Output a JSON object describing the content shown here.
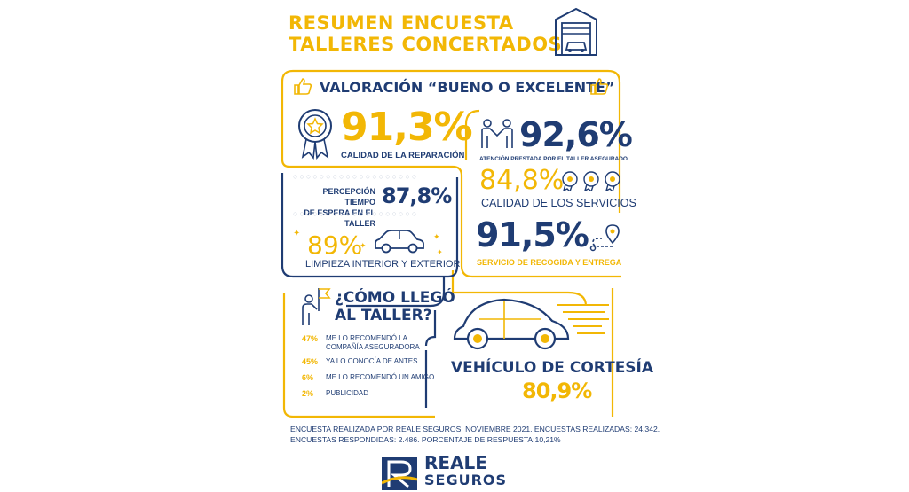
{
  "title": {
    "line1": "RESUMEN ENCUESTA",
    "line2": "TALLERES CONCERTADOS"
  },
  "rating": {
    "heading": "VALORACIÓN “BUENO O EXCELENTE”"
  },
  "repair": {
    "value": "91,3%",
    "label": "CALIDAD DE LA REPARACIÓN"
  },
  "attention": {
    "value": "92,6%",
    "label": "ATENCIÓN PRESTADA POR EL TALLER ASEGURADO"
  },
  "services": {
    "value": "84,8%",
    "label": "CALIDAD DE LOS SERVICIOS"
  },
  "wait": {
    "label_line1": "PERCEPCIÓN TIEMPO",
    "label_line2": "DE ESPERA EN EL TALLER",
    "value": "87,8%"
  },
  "cleaning": {
    "value": "89%",
    "label": "LIMPIEZA INTERIOR Y EXTERIOR"
  },
  "pickup": {
    "value": "91,5%",
    "label": "SERVICIO DE RECOGIDA Y ENTREGA"
  },
  "arrival": {
    "heading_line1": "¿CÓMO LLEGÓ",
    "heading_line2": "AL TALLER?",
    "items": [
      {
        "pct": "47%",
        "text": "ME LO RECOMENDÓ LA COMPAÑÍA ASEGURADORA"
      },
      {
        "pct": "45%",
        "text": "YA LO CONOCÍA DE ANTES"
      },
      {
        "pct": "6%",
        "text": "ME LO RECOMENDÓ UN AMIGO"
      },
      {
        "pct": "2%",
        "text": "PUBLICIDAD"
      }
    ]
  },
  "courtesy": {
    "label": "VEHÍCULO DE CORTESÍA",
    "value": "80,9%"
  },
  "footer": {
    "line1": "ENCUESTA REALIZADA POR REALE SEGUROS. NOVIEMBRE 2021. ENCUESTAS REALIZADAS: 24.342.",
    "line2": "ENCUESTAS RESPONDIDAS: 2.486. PORCENTAJE DE RESPUESTA:10,21%"
  },
  "logo": {
    "line1": "REALE",
    "line2": "SEGUROS"
  },
  "colors": {
    "yellow": "#F2B705",
    "navy": "#1F3C73"
  }
}
